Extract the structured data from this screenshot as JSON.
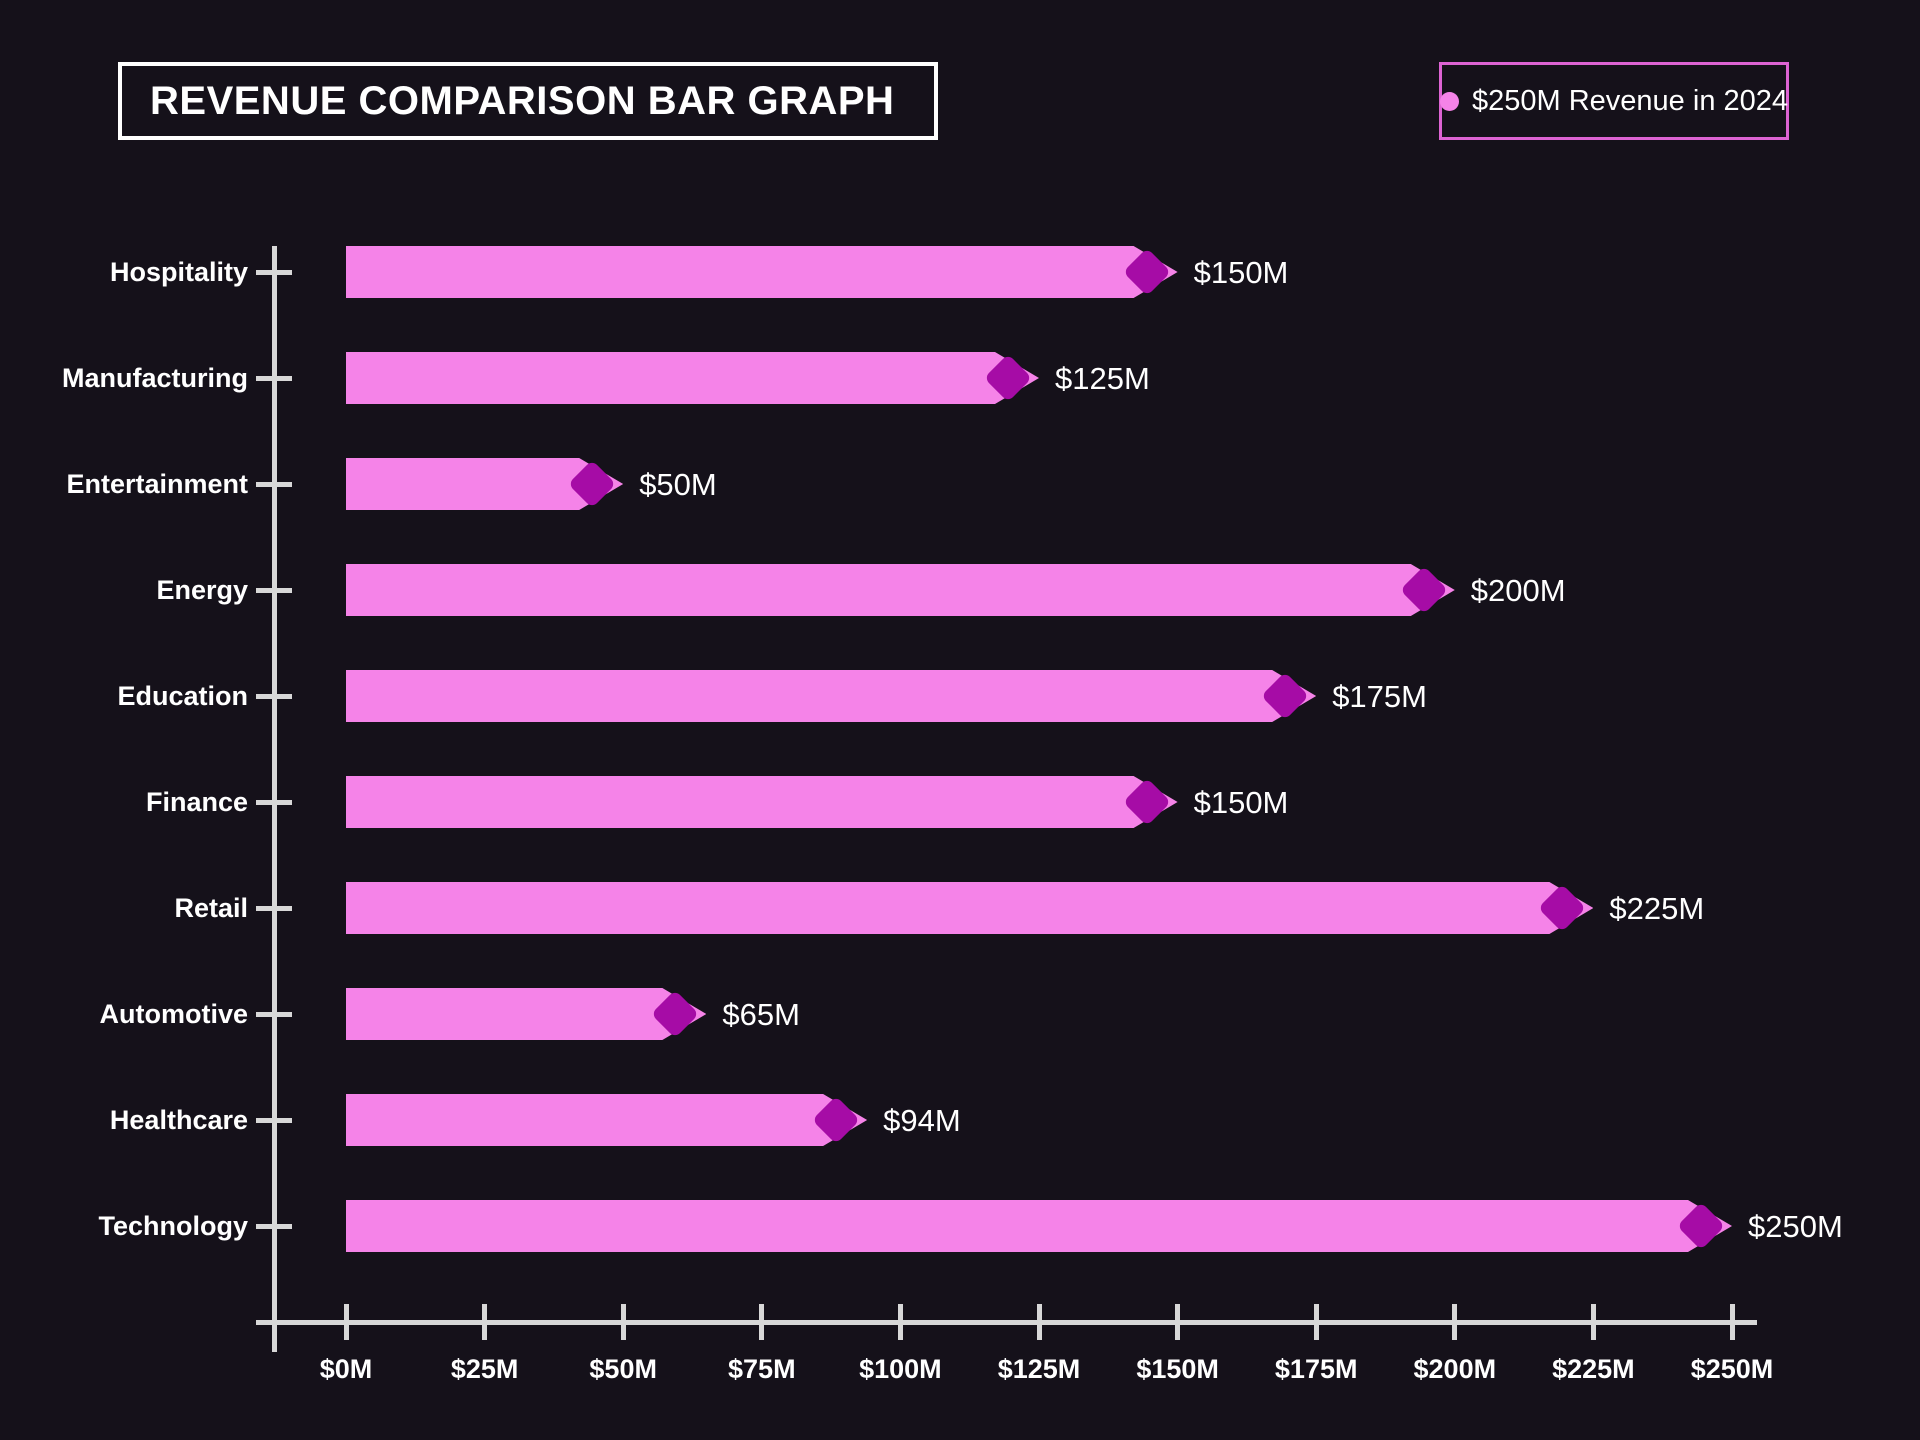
{
  "title": "REVENUE COMPARISON BAR GRAPH",
  "legend": {
    "label": "$250M Revenue in 2024",
    "dot_color": "#f583e8",
    "border_color": "#dd63d3"
  },
  "colors": {
    "background": "#15111a",
    "bar": "#f583e8",
    "diamond": "#a60ca6",
    "axis": "#d8d8d8",
    "text": "#ffffff",
    "title_border": "#ffffff"
  },
  "chart_data": {
    "type": "bar",
    "orientation": "horizontal",
    "title": "REVENUE COMPARISON BAR GRAPH",
    "legend_entries": [
      "$250M Revenue in 2024"
    ],
    "legend_position": "top-right",
    "grid": false,
    "categories": [
      "Hospitality",
      "Manufacturing",
      "Entertainment",
      "Energy",
      "Education",
      "Finance",
      "Retail",
      "Automotive",
      "Healthcare",
      "Technology"
    ],
    "values": [
      150,
      125,
      50,
      200,
      175,
      150,
      225,
      65,
      94,
      250
    ],
    "value_labels": [
      "$150M",
      "$125M",
      "$50M",
      "$200M",
      "$175M",
      "$150M",
      "$225M",
      "$65M",
      "$94M",
      "$250M"
    ],
    "xlabel": "",
    "ylabel": "",
    "xlim": [
      0,
      250
    ],
    "x_tick_values": [
      0,
      25,
      50,
      75,
      100,
      125,
      150,
      175,
      200,
      225,
      250
    ],
    "x_tick_labels": [
      "$0M",
      "$25M",
      "$50M",
      "$75M",
      "$100M",
      "$125M",
      "$150M",
      "$175M",
      "$200M",
      "$225M",
      "$250M"
    ]
  }
}
